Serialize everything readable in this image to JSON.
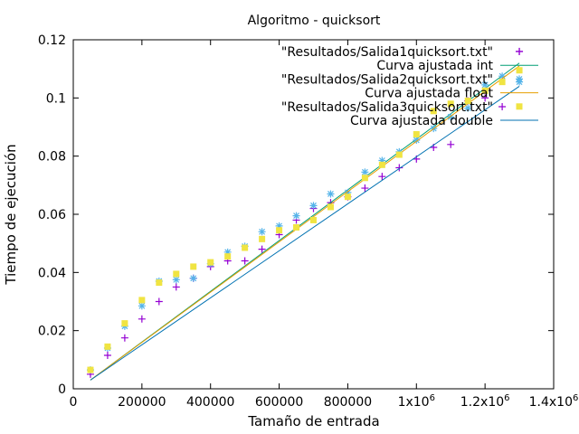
{
  "chart_data": {
    "type": "scatter",
    "title": "Algoritmo - quicksort",
    "xlabel": "Tamaño de entrada",
    "ylabel": "Tiempo de ejecución",
    "xlim": [
      0,
      1400000
    ],
    "ylim": [
      0,
      0.12
    ],
    "grid": false,
    "legend_position": "top-right",
    "x_ticks": [
      {
        "value": 0,
        "label": "0"
      },
      {
        "value": 200000,
        "label": "200000"
      },
      {
        "value": 400000,
        "label": "400000"
      },
      {
        "value": 600000,
        "label": "600000"
      },
      {
        "value": 800000,
        "label": "800000"
      },
      {
        "value": 1000000,
        "label": "1x10",
        "sup": "6"
      },
      {
        "value": 1200000,
        "label": "1.2x10",
        "sup": "6"
      },
      {
        "value": 1400000,
        "label": "1.4x10",
        "sup": "6"
      }
    ],
    "y_ticks": [
      {
        "value": 0,
        "label": "0"
      },
      {
        "value": 0.02,
        "label": "0.02"
      },
      {
        "value": 0.04,
        "label": "0.04"
      },
      {
        "value": 0.06,
        "label": "0.06"
      },
      {
        "value": 0.08,
        "label": "0.08"
      },
      {
        "value": 0.1,
        "label": "0.1"
      },
      {
        "value": 0.12,
        "label": "0.12"
      }
    ],
    "x": [
      50000,
      100000,
      150000,
      200000,
      250000,
      300000,
      350000,
      400000,
      450000,
      500000,
      550000,
      600000,
      650000,
      700000,
      750000,
      800000,
      850000,
      900000,
      950000,
      1000000,
      1050000,
      1100000,
      1150000,
      1200000,
      1250000,
      1300000
    ],
    "series": [
      {
        "name": "\"Resultados/Salida1quicksort.txt\"",
        "kind": "points",
        "marker": "plus",
        "color": "#9400d3",
        "x": [
          50000,
          100000,
          150000,
          200000,
          250000,
          300000,
          350000,
          400000,
          450000,
          500000,
          550000,
          600000,
          650000,
          700000,
          750000,
          800000,
          850000,
          900000,
          950000,
          1000000,
          1050000,
          1100000,
          1150000,
          1200000,
          1250000,
          1300000
        ],
        "values": [
          0.005,
          0.0115,
          0.0175,
          0.024,
          0.03,
          0.035,
          0.038,
          0.042,
          0.044,
          0.044,
          0.048,
          0.053,
          0.058,
          0.062,
          0.064,
          0.066,
          0.069,
          0.073,
          0.076,
          0.079,
          0.083,
          0.084,
          0.099,
          0.1,
          0.097,
          0.116
        ]
      },
      {
        "name": "Curva ajustada int",
        "kind": "line",
        "color": "#009e73",
        "x": [
          50000,
          1300000
        ],
        "values": [
          0.003,
          0.112
        ]
      },
      {
        "name": "\"Resultados/Salida2quicksort.txt\"",
        "kind": "points",
        "marker": "star",
        "color": "#56b4e9",
        "x": [
          50000,
          100000,
          150000,
          200000,
          250000,
          300000,
          350000,
          400000,
          450000,
          500000,
          550000,
          600000,
          650000,
          700000,
          750000,
          800000,
          850000,
          900000,
          950000,
          1000000,
          1050000,
          1100000,
          1150000,
          1200000,
          1250000,
          1300000
        ],
        "values": [
          0.0065,
          0.014,
          0.0215,
          0.0285,
          0.037,
          0.0375,
          0.038,
          0.043,
          0.047,
          0.049,
          0.054,
          0.056,
          0.0595,
          0.063,
          0.067,
          0.0675,
          0.0745,
          0.0785,
          0.0815,
          0.0855,
          0.0895,
          0.0935,
          0.0965,
          0.1045,
          0.1075,
          0.1055
        ]
      },
      {
        "name": "Curva ajustada float",
        "kind": "line",
        "color": "#e69f00",
        "x": [
          50000,
          1300000
        ],
        "values": [
          0.003,
          0.111
        ]
      },
      {
        "name": "\"Resultados/Salida3quicksort.txt\"",
        "kind": "points",
        "marker": "square",
        "color": "#f0e442",
        "x": [
          50000,
          100000,
          150000,
          200000,
          250000,
          300000,
          350000,
          400000,
          450000,
          500000,
          550000,
          600000,
          650000,
          700000,
          750000,
          800000,
          850000,
          900000,
          950000,
          1000000,
          1050000,
          1100000,
          1150000,
          1200000,
          1250000,
          1300000
        ],
        "values": [
          0.0065,
          0.0145,
          0.0225,
          0.0305,
          0.0365,
          0.0395,
          0.042,
          0.0435,
          0.0455,
          0.0485,
          0.0515,
          0.0545,
          0.0555,
          0.058,
          0.0625,
          0.066,
          0.0725,
          0.077,
          0.0805,
          0.0875,
          0.0955,
          0.098,
          0.099,
          0.1025,
          0.1055,
          0.1095
        ]
      },
      {
        "name": "Curva ajustada double",
        "kind": "line",
        "color": "#0072b2",
        "x": [
          50000,
          1300000
        ],
        "values": [
          0.003,
          0.104
        ]
      }
    ]
  }
}
